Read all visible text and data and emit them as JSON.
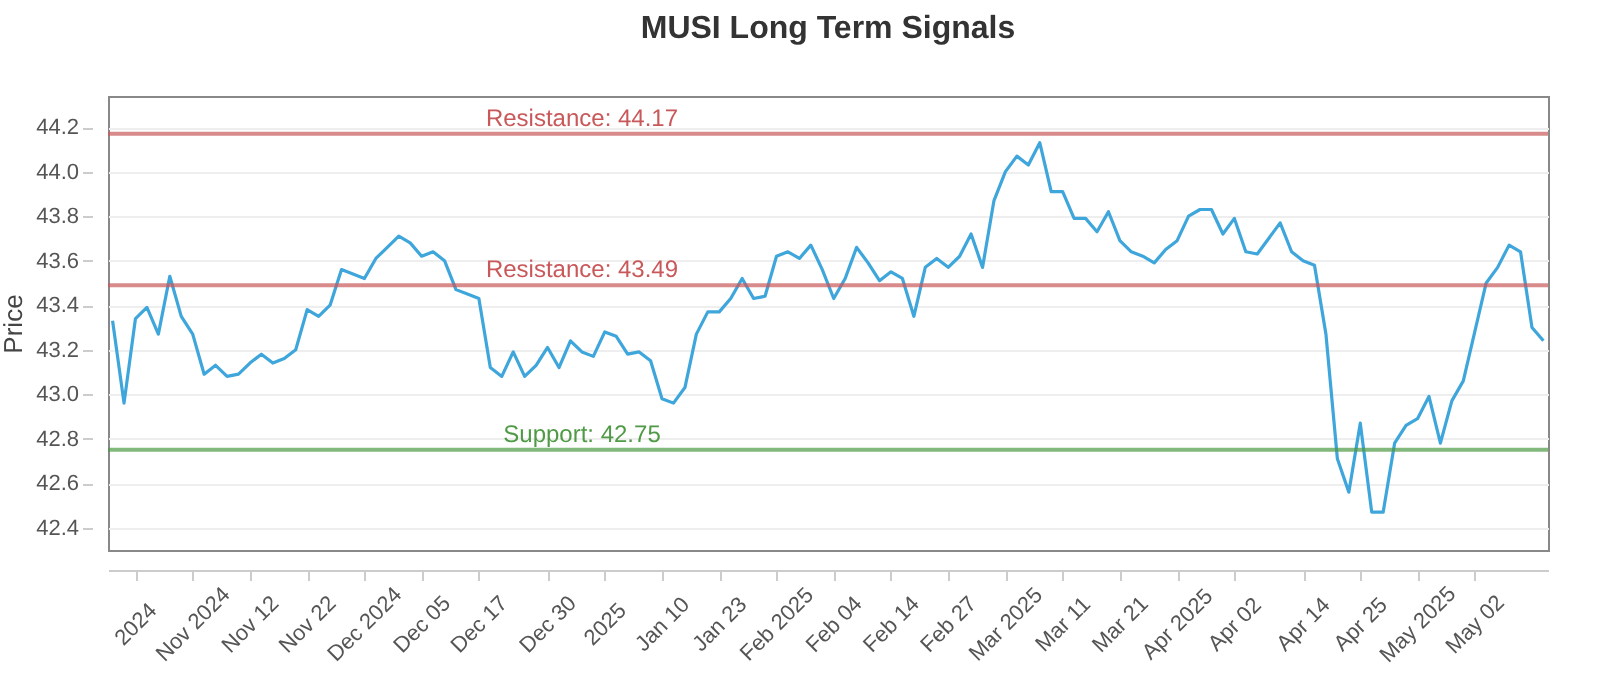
{
  "chart_data": {
    "type": "line",
    "title": "MUSI Long Term Signals",
    "ylabel": "Price",
    "categories": [
      null,
      null,
      "2024",
      null,
      null,
      null,
      null,
      "Nov 2024",
      null,
      null,
      null,
      null,
      "Nov 12",
      null,
      null,
      null,
      null,
      "Nov 22",
      null,
      null,
      null,
      null,
      "Dec 2024",
      null,
      null,
      null,
      null,
      "Dec 05",
      null,
      null,
      null,
      null,
      "Dec 17",
      null,
      null,
      null,
      null,
      null,
      "Dec 30",
      null,
      null,
      null,
      null,
      "2025",
      null,
      null,
      null,
      null,
      "Jan 10",
      null,
      null,
      null,
      null,
      "Jan 23",
      null,
      null,
      null,
      null,
      "Feb 2025",
      null,
      null,
      null,
      null,
      "Feb 04",
      null,
      null,
      null,
      null,
      "Feb 14",
      null,
      null,
      null,
      null,
      "Feb 27",
      null,
      null,
      null,
      null,
      "Mar 2025",
      null,
      null,
      null,
      null,
      "Mar 11",
      null,
      null,
      null,
      null,
      "Mar 21",
      null,
      null,
      null,
      null,
      "Apr 2025",
      null,
      null,
      null,
      null,
      "Apr 02",
      null,
      null,
      null,
      null,
      null,
      "Apr 14",
      null,
      null,
      null,
      null,
      "Apr 25",
      null,
      null,
      null,
      null,
      "May 2025",
      null,
      null,
      null,
      null,
      "May 02",
      null,
      null,
      null,
      null,
      null,
      null
    ],
    "series": [
      {
        "color": "#3fa6dc",
        "values": [
          43.33,
          42.96,
          43.34,
          43.39,
          43.27,
          43.53,
          43.35,
          43.27,
          43.09,
          43.13,
          43.08,
          43.09,
          43.14,
          43.18,
          43.14,
          43.16,
          43.2,
          43.38,
          43.35,
          43.4,
          43.56,
          43.54,
          43.52,
          43.61,
          43.66,
          43.71,
          43.68,
          43.62,
          43.64,
          43.6,
          43.47,
          43.45,
          43.43,
          43.12,
          43.08,
          43.19,
          43.08,
          43.13,
          43.21,
          43.12,
          43.24,
          43.19,
          43.17,
          43.28,
          43.26,
          43.18,
          43.19,
          43.15,
          42.98,
          42.96,
          43.03,
          43.27,
          43.37,
          43.37,
          43.43,
          43.52,
          43.43,
          43.44,
          43.62,
          43.64,
          43.61,
          43.67,
          43.56,
          43.43,
          43.52,
          43.66,
          43.59,
          43.51,
          43.55,
          43.52,
          43.35,
          43.57,
          43.61,
          43.57,
          43.62,
          43.72,
          43.57,
          43.87,
          44.0,
          44.07,
          44.03,
          44.13,
          43.91,
          43.91,
          43.79,
          43.79,
          43.73,
          43.82,
          43.69,
          43.64,
          43.62,
          43.59,
          43.65,
          43.69,
          43.8,
          43.83,
          43.83,
          43.72,
          43.79,
          43.64,
          43.63,
          43.7,
          43.77,
          43.64,
          43.6,
          43.58,
          43.27,
          42.71,
          42.56,
          42.87,
          42.47,
          42.47,
          42.78,
          42.86,
          42.89,
          42.99,
          42.78,
          42.97,
          43.06,
          43.28,
          43.5,
          43.57,
          43.67,
          43.64,
          43.3,
          43.24
        ]
      }
    ],
    "ylim": [
      42.3,
      44.34
    ],
    "yticks": [
      42.4,
      42.6,
      42.8,
      {
        "value": 43,
        "label": "43.0"
      },
      43.2,
      43.4,
      43.6,
      43.8,
      {
        "value": 44,
        "label": "44.0"
      },
      44.2
    ],
    "grid": "y",
    "ref_lines": [
      {
        "axis": "y",
        "value": 44.17,
        "label": "Resistance: 44.17",
        "color": "#c9585a"
      },
      {
        "axis": "y",
        "value": 43.49,
        "label": "Resistance: 43.49",
        "color": "#c9585a"
      },
      {
        "axis": "y",
        "value": 42.75,
        "label": "Support: 42.75",
        "color": "#4f9a45"
      }
    ]
  }
}
